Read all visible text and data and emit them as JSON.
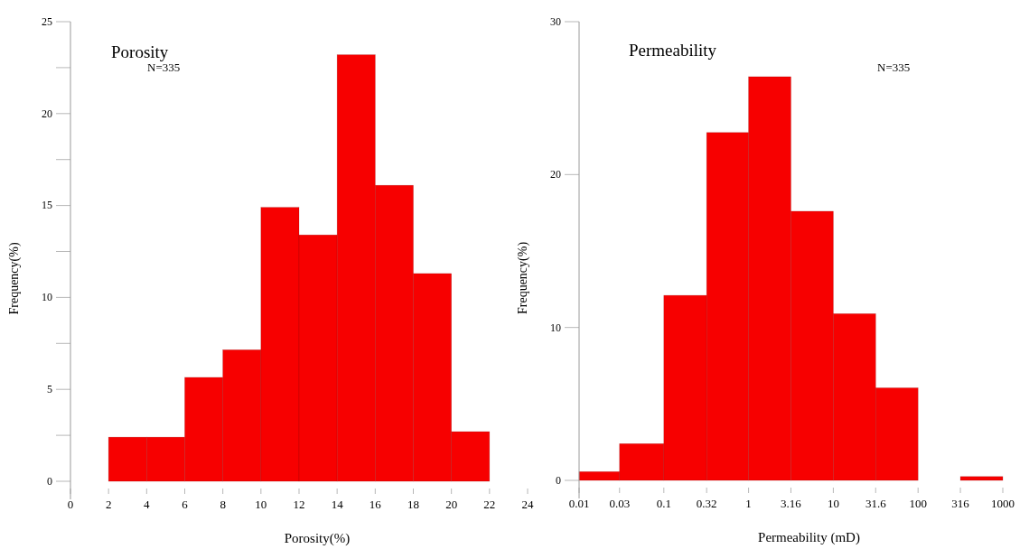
{
  "chart_data": [
    {
      "type": "histogram",
      "title": "Porosity",
      "xlabel": "Porosity(%)",
      "ylabel": "Frequency(%)",
      "annotations": [
        "N=335"
      ],
      "color": "#f70000",
      "bins": [
        2,
        4,
        6,
        8,
        10,
        12,
        14,
        16,
        18,
        20,
        22
      ],
      "values": [
        2.4,
        2.4,
        5.65,
        7.15,
        14.9,
        13.4,
        23.2,
        16.1,
        11.3,
        2.7
      ],
      "xlim": [
        0,
        24
      ],
      "xticks": [
        0,
        2,
        4,
        6,
        8,
        10,
        12,
        14,
        16,
        18,
        20,
        22,
        24
      ],
      "ylim": [
        0,
        25
      ],
      "yticks": [
        0,
        {
          "value": 2.5,
          "label": null
        },
        5,
        {
          "value": 7.5,
          "label": null
        },
        10,
        {
          "value": 12.5,
          "label": null
        },
        15,
        {
          "value": 17.5,
          "label": null
        },
        20,
        {
          "value": 22.5,
          "label": null
        },
        25
      ]
    },
    {
      "type": "histogram",
      "title": "Permeability",
      "xlabel": "Permeability (mD)",
      "ylabel": "Frequency(%)",
      "annotations": [
        "N=335"
      ],
      "color": "#f70000",
      "log": "x",
      "bins": [
        0.01,
        0.03,
        0.1,
        0.32,
        1,
        3.16,
        10,
        31.6,
        100,
        316,
        1000
      ],
      "values": [
        0.57,
        2.4,
        12.1,
        22.75,
        26.4,
        17.6,
        10.9,
        6.05,
        0,
        0.25
      ],
      "xlim": [
        0.01,
        1000
      ],
      "xticks": [
        0.01,
        0.03,
        0.1,
        0.32,
        1,
        3.16,
        10,
        31.6,
        100,
        316,
        1000
      ],
      "ylim": [
        0,
        30
      ],
      "yticks": [
        0,
        10,
        20,
        30
      ]
    }
  ]
}
